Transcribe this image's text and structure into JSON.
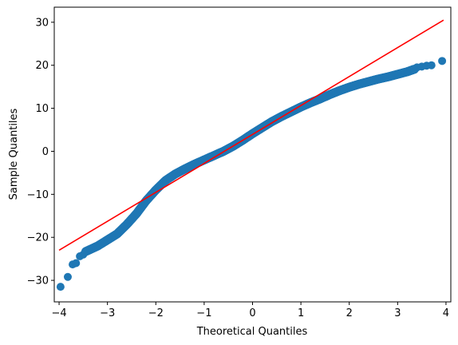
{
  "chart_data": {
    "type": "scatter",
    "title": "",
    "xlabel": "Theoretical Quantiles",
    "ylabel": "Sample Quantiles",
    "xlim": [
      -4.1,
      4.1
    ],
    "ylim": [
      -35,
      33.5
    ],
    "xticks": [
      -4,
      -3,
      -2,
      -1,
      0,
      1,
      2,
      3,
      4
    ],
    "xtick_labels": [
      "−4",
      "−3",
      "−2",
      "−1",
      "0",
      "1",
      "2",
      "3",
      "4"
    ],
    "yticks": [
      -30,
      -20,
      -10,
      0,
      10,
      20,
      30
    ],
    "ytick_labels": [
      "−30",
      "−20",
      "−10",
      "0",
      "10",
      "20",
      "30"
    ],
    "grid": false,
    "marker_color": "#1f77b4",
    "line_color": "#ff0000",
    "reference_line": {
      "x": [
        -4.0,
        3.95
      ],
      "y": [
        -23.0,
        30.5
      ]
    },
    "sample_curve": {
      "x": [
        -3.45,
        -3.2,
        -3.0,
        -2.8,
        -2.6,
        -2.4,
        -2.2,
        -2.0,
        -1.8,
        -1.6,
        -1.4,
        -1.2,
        -1.0,
        -0.8,
        -0.6,
        -0.4,
        -0.2,
        0.0,
        0.2,
        0.4,
        0.6,
        0.8,
        1.0,
        1.2,
        1.4,
        1.6,
        1.8,
        2.0,
        2.2,
        2.4,
        2.6,
        2.8,
        3.0,
        3.2,
        3.35
      ],
      "y": [
        -23.3,
        -22.0,
        -20.6,
        -19.2,
        -17.0,
        -14.5,
        -11.5,
        -9.0,
        -6.8,
        -5.3,
        -4.1,
        -3.0,
        -2.0,
        -1.0,
        0.0,
        1.2,
        2.6,
        4.1,
        5.5,
        6.9,
        8.1,
        9.2,
        10.3,
        11.3,
        12.2,
        13.2,
        14.1,
        14.9,
        15.6,
        16.2,
        16.8,
        17.3,
        17.9,
        18.5,
        19.1
      ]
    },
    "tail_points": {
      "x": [
        -3.97,
        -3.82,
        -3.72,
        -3.65,
        -3.57,
        -3.5,
        3.4,
        3.5,
        3.6,
        3.7,
        3.92
      ],
      "y": [
        -31.5,
        -29.2,
        -26.3,
        -26.0,
        -24.4,
        -24.0,
        19.5,
        19.7,
        19.9,
        20.0,
        21.0
      ]
    }
  }
}
